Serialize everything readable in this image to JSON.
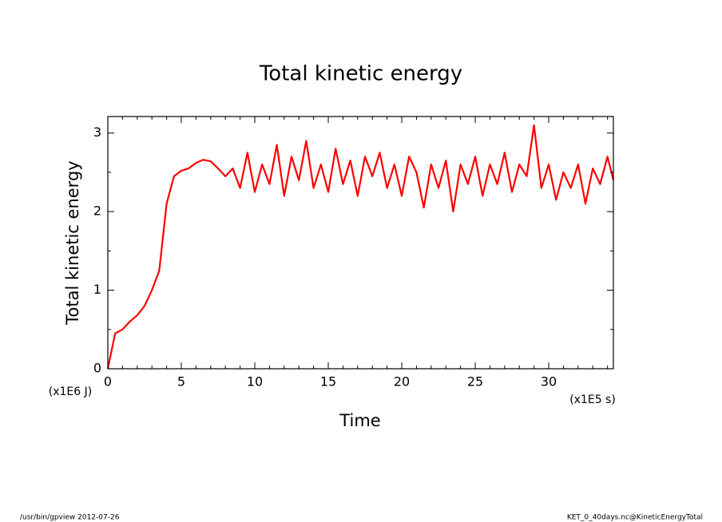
{
  "chart_data": {
    "type": "line",
    "title": "Total kinetic energy",
    "x_label": "Time",
    "y_label": "Total kinetic energy",
    "x_unit": "(x1E5 s)",
    "y_unit": "(x1E6 J)",
    "footer_left": "/usr/bin/gpview  2012-07-26",
    "footer_right": "KET_0_40days.nc@KineticEnergyTotal",
    "xlim": [
      0,
      34.4
    ],
    "ylim": [
      0,
      3.21
    ],
    "xticks": [
      0,
      5,
      10,
      15,
      20,
      25,
      30
    ],
    "yticks": [
      0,
      1,
      2,
      3
    ],
    "xminorticks": [
      1,
      2,
      3,
      4,
      6,
      7,
      8,
      9,
      11,
      12,
      13,
      14,
      16,
      17,
      18,
      19,
      21,
      22,
      23,
      24,
      26,
      27,
      28,
      29,
      31,
      32,
      33,
      34
    ],
    "yminorticks": [
      0.5,
      1.5,
      2.5
    ],
    "series": [
      {
        "name": "Total kinetic energy",
        "color": "#ff0000",
        "x": [
          0,
          0.5,
          1,
          1.5,
          2,
          2.5,
          3,
          3.5,
          4,
          4.5,
          5,
          5.5,
          6,
          6.5,
          7,
          7.5,
          8,
          8.5,
          9,
          9.5,
          10,
          10.5,
          11,
          11.5,
          12,
          12.5,
          13,
          13.5,
          14,
          14.5,
          15,
          15.5,
          16,
          16.5,
          17,
          17.5,
          18,
          18.5,
          19,
          19.5,
          20,
          20.5,
          21,
          21.5,
          22,
          22.5,
          23,
          23.5,
          24,
          24.5,
          25,
          25.5,
          26,
          26.5,
          27,
          27.5,
          28,
          28.5,
          29,
          29.5,
          30,
          30.5,
          31,
          31.5,
          32,
          32.5,
          33,
          33.5,
          34,
          34.4
        ],
        "values": [
          0.0,
          0.45,
          0.5,
          0.6,
          0.68,
          0.8,
          1.0,
          1.25,
          2.1,
          2.45,
          2.52,
          2.55,
          2.62,
          2.66,
          2.64,
          2.55,
          2.45,
          2.55,
          2.3,
          2.75,
          2.25,
          2.6,
          2.35,
          2.85,
          2.2,
          2.7,
          2.4,
          2.9,
          2.3,
          2.6,
          2.25,
          2.8,
          2.35,
          2.65,
          2.2,
          2.7,
          2.45,
          2.75,
          2.3,
          2.6,
          2.2,
          2.7,
          2.5,
          2.05,
          2.6,
          2.3,
          2.65,
          2.0,
          2.6,
          2.35,
          2.7,
          2.2,
          2.6,
          2.35,
          2.75,
          2.25,
          2.6,
          2.45,
          3.1,
          2.3,
          2.6,
          2.15,
          2.5,
          2.3,
          2.6,
          2.1,
          2.55,
          2.35,
          2.7,
          2.4
        ]
      }
    ]
  }
}
